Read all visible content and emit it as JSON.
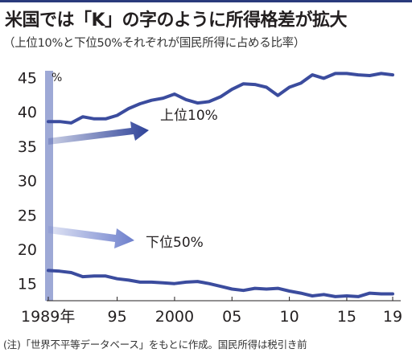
{
  "header": {
    "title": "米国では「K」の字のように所得格差が拡大",
    "subtitle": "（上位10%と下位50%それぞれが国民所得に占める比率）"
  },
  "footer": {
    "note": "(注)「世界不平等データベース」をもとに作成。国民所得は税引き前"
  },
  "colors": {
    "line": "#3b4c9e",
    "axis_band": "#9ea9d6",
    "text": "#231f20"
  },
  "chart_data": {
    "type": "line",
    "title": "米国では「K」の字のように所得格差が拡大",
    "subtitle": "（上位10%と下位50%それぞれが国民所得に占める比率）",
    "ylabel": "%",
    "xlabel": "",
    "ylim": [
      12.5,
      46
    ],
    "xlim": [
      1989,
      2019
    ],
    "yticks": [
      15,
      20,
      25,
      30,
      35,
      40,
      45
    ],
    "ytick_labels": [
      "15",
      "20",
      "25",
      "30",
      "35",
      "40",
      "45"
    ],
    "xticks": [
      1989,
      1995,
      2000,
      2005,
      2010,
      2015,
      2019
    ],
    "xtick_labels": [
      "1989年",
      "95",
      "2000",
      "05",
      "10",
      "15",
      "19"
    ],
    "grid": false,
    "legend": "inline labels",
    "x": [
      1989,
      1990,
      1991,
      1992,
      1993,
      1994,
      1995,
      1996,
      1997,
      1998,
      1999,
      2000,
      2001,
      2002,
      2003,
      2004,
      2005,
      2006,
      2007,
      2008,
      2009,
      2010,
      2011,
      2012,
      2013,
      2014,
      2015,
      2016,
      2017,
      2018,
      2019
    ],
    "series": [
      {
        "name": "上位10%",
        "values": [
          38.6,
          38.6,
          38.4,
          39.3,
          39.0,
          39.0,
          39.5,
          40.5,
          41.2,
          41.7,
          42.0,
          42.6,
          41.8,
          41.3,
          41.5,
          42.2,
          43.3,
          44.1,
          44.0,
          43.6,
          42.4,
          43.6,
          44.2,
          45.4,
          44.9,
          45.6,
          45.6,
          45.4,
          45.3,
          45.6,
          45.4
        ]
      },
      {
        "name": "下位50%",
        "values": [
          16.9,
          16.8,
          16.6,
          16.0,
          16.1,
          16.1,
          15.7,
          15.5,
          15.2,
          15.2,
          15.1,
          15.0,
          15.2,
          15.3,
          15.0,
          14.6,
          14.2,
          14.0,
          14.3,
          14.2,
          14.3,
          13.9,
          13.6,
          13.2,
          13.4,
          13.1,
          13.2,
          13.1,
          13.6,
          13.5,
          13.5
        ]
      }
    ],
    "annotations": [
      {
        "text": "上位10%",
        "direction": "up"
      },
      {
        "text": "下位50%",
        "direction": "down"
      }
    ]
  }
}
